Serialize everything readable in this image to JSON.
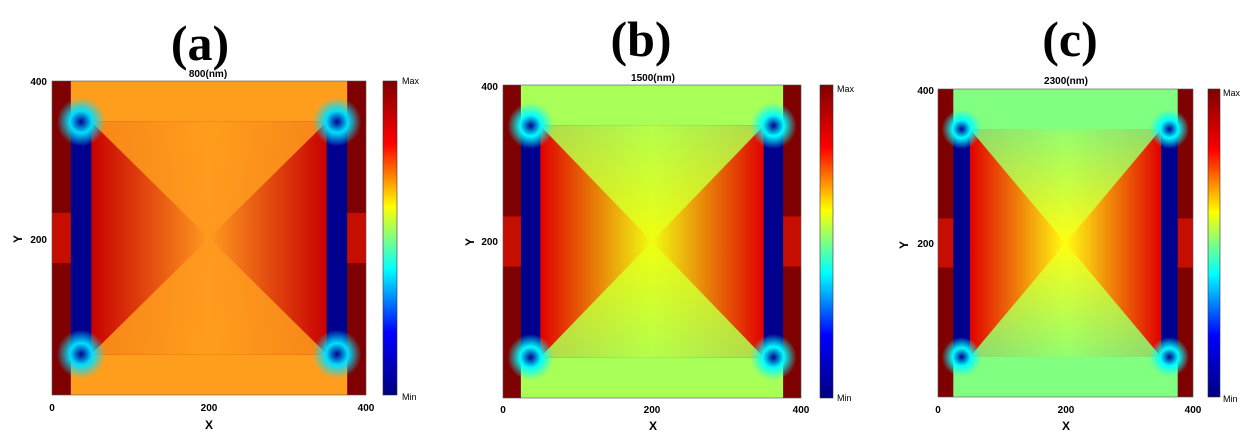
{
  "colormap": {
    "name": "jet",
    "stops": [
      "#00007f",
      "#0000ff",
      "#00ffff",
      "#ffff00",
      "#ff0000",
      "#7f0000"
    ],
    "max_label": "Max",
    "min_label": "Min"
  },
  "chart_data": [
    {
      "type": "heatmap",
      "panel_label": "(a)",
      "title": "800(nm)",
      "xlabel": "X",
      "ylabel": "Y",
      "xlim": [
        0,
        400
      ],
      "ylim": [
        0,
        400
      ],
      "xticks": [
        "0",
        "200",
        "400"
      ],
      "yticks": [
        "200",
        "400"
      ],
      "colorbar": {
        "max": "Max",
        "min": "Min"
      },
      "field": {
        "center_color": "#ff9a1f",
        "top_bottom_band": "#ff9e1c",
        "left_right_edge": "#c80000",
        "blade_color": "#00008f",
        "corner_color": "#00e0ff",
        "outer_border": "#7f0000"
      }
    },
    {
      "type": "heatmap",
      "panel_label": "(b)",
      "title": "1500(nm)",
      "xlabel": "X",
      "ylabel": "Y",
      "xlim": [
        0,
        400
      ],
      "ylim": [
        0,
        400
      ],
      "xticks": [
        "0",
        "200",
        "400"
      ],
      "yticks": [
        "200",
        "400"
      ],
      "colorbar": {
        "max": "Max",
        "min": "Min"
      },
      "field": {
        "center_color": "#f0ff10",
        "top_bottom_band": "#a8ff58",
        "left_right_edge": "#e00000",
        "blade_color": "#00008f",
        "corner_color": "#00ffff",
        "outer_border": "#7f0000"
      }
    },
    {
      "type": "heatmap",
      "panel_label": "(c)",
      "title": "2300(nm)",
      "xlabel": "X",
      "ylabel": "Y",
      "xlim": [
        0,
        400
      ],
      "ylim": [
        0,
        400
      ],
      "xticks": [
        "0",
        "200",
        "400"
      ],
      "yticks": [
        "200",
        "400"
      ],
      "colorbar": {
        "max": "Max",
        "min": "Min"
      },
      "field": {
        "center_color": "#ffff12",
        "top_bottom_band": "#80ff80",
        "left_right_edge": "#e00000",
        "blade_color": "#00008f",
        "corner_color": "#00ffff",
        "outer_border": "#7f0000"
      }
    }
  ]
}
